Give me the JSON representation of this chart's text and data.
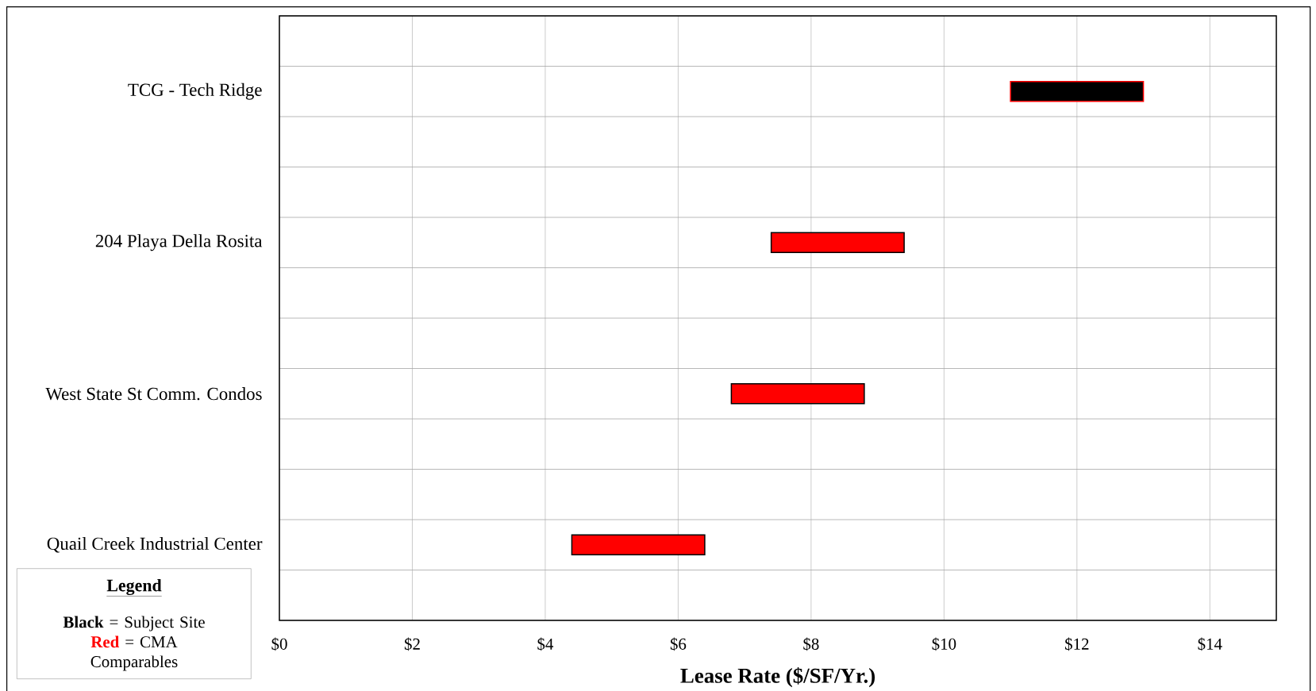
{
  "chart_data": {
    "type": "bar",
    "orientation": "horizontal",
    "xlabel": "Lease Rate ($/SF/Yr.)",
    "categories": [
      "TCG - Tech Ridge",
      "204 Playa Della Rosita",
      "West State St Comm. Condos",
      "Quail Creek Industrial Center"
    ],
    "base": [
      11,
      7.4,
      6.8,
      4.4
    ],
    "values": [
      2,
      2,
      2,
      2
    ],
    "colors": [
      "#000000",
      "#ff0000",
      "#ff0000",
      "#ff0000"
    ],
    "xlim": [
      0,
      15
    ],
    "xticks": [
      {
        "value": 0,
        "label": "$0"
      },
      {
        "value": 2,
        "label": "$2"
      },
      {
        "value": 4,
        "label": "$4"
      },
      {
        "value": 6,
        "label": "$6"
      },
      {
        "value": 8,
        "label": "$8"
      },
      {
        "value": 10,
        "label": "$10"
      },
      {
        "value": 12,
        "label": "$12"
      },
      {
        "value": 14,
        "label": "$14"
      }
    ],
    "grid": true,
    "annotations": [
      "Legend",
      "Black",
      "= Subject Site",
      "Red",
      "= CMA Comparables"
    ]
  }
}
